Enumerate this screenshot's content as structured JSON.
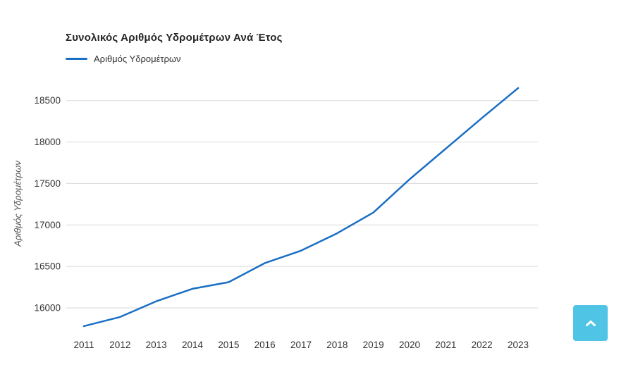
{
  "chart_data": {
    "type": "line",
    "title": "Συνολικός Αριθμός Υδρομέτρων Ανά Έτος",
    "legend_label": "Αριθμός Υδρομέτρων",
    "legend_position": "top-left",
    "xlabel": "",
    "ylabel": "Αριθμός Υδρομέτρων",
    "categories": [
      "2011",
      "2012",
      "2013",
      "2014",
      "2015",
      "2016",
      "2017",
      "2018",
      "2019",
      "2020",
      "2021",
      "2022",
      "2023"
    ],
    "series": [
      {
        "name": "Αριθμός Υδρομέτρων",
        "color": "#1a6fc4",
        "values": [
          15780,
          15890,
          16080,
          16230,
          16310,
          16540,
          16690,
          16900,
          17150,
          17550,
          17920,
          18290,
          18650
        ]
      }
    ],
    "y_ticks": [
      16000,
      16500,
      17000,
      17500,
      18000,
      18500
    ],
    "ylim": [
      15700,
      18720
    ],
    "grid": "horizontal-only",
    "colors": {
      "gridline": "#d9d9d9",
      "tick_label": "#333333",
      "title": "#262626",
      "axis_title": "#555555"
    }
  },
  "scroll_top_button": {
    "icon": "chevron-up",
    "background": "#4fc4e4",
    "icon_color": "#ffffff"
  }
}
